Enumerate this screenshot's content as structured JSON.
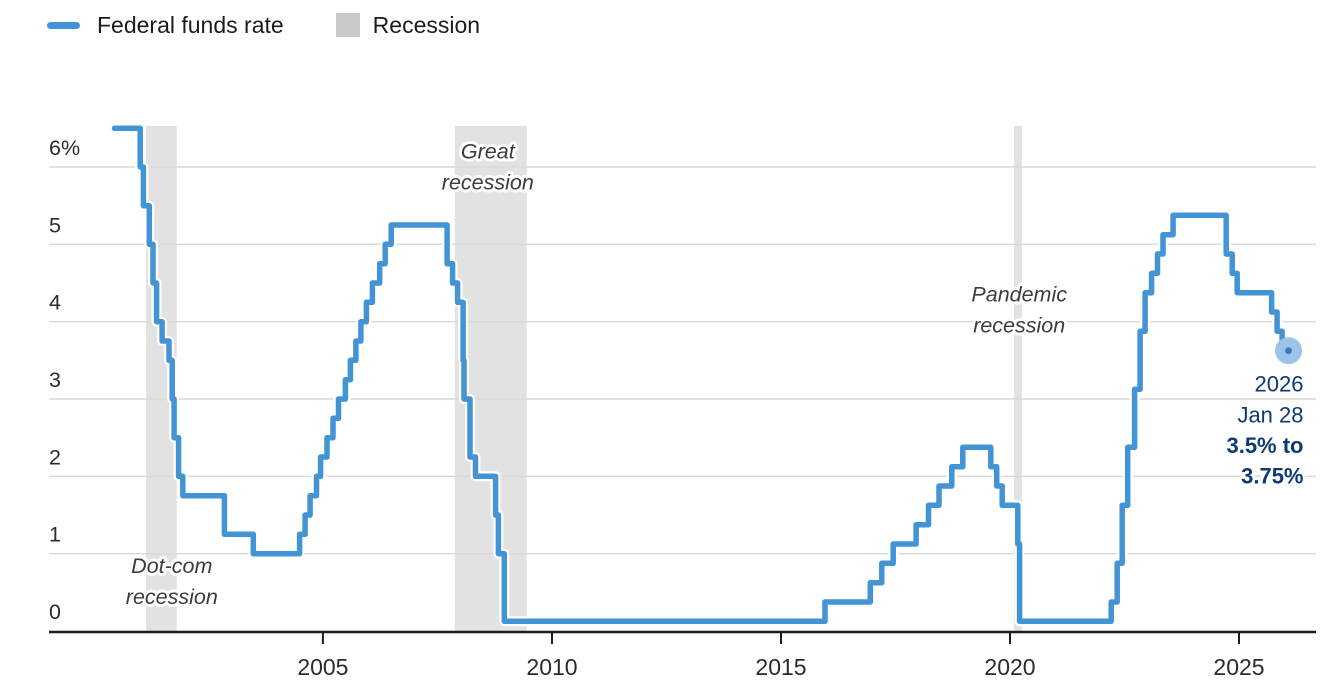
{
  "chart_data": {
    "type": "line",
    "step": true,
    "title": "",
    "xlabel": "",
    "ylabel": "",
    "xlim": [
      1999.02,
      2026.68
    ],
    "ylim": [
      0,
      6.53
    ],
    "grid": "horizontal-only",
    "x_ticks": [
      {
        "v": 2005,
        "label": "2005"
      },
      {
        "v": 2010,
        "label": "2010"
      },
      {
        "v": 2015,
        "label": "2015"
      },
      {
        "v": 2020,
        "label": "2020"
      },
      {
        "v": 2025,
        "label": "2025"
      }
    ],
    "y_ticks": [
      {
        "v": 0,
        "label": "0"
      },
      {
        "v": 1,
        "label": "1"
      },
      {
        "v": 2,
        "label": "2"
      },
      {
        "v": 3,
        "label": "3"
      },
      {
        "v": 4,
        "label": "4"
      },
      {
        "v": 5,
        "label": "5"
      },
      {
        "v": 6,
        "label": "6%"
      }
    ],
    "legend": {
      "position": "top-left",
      "items": [
        {
          "label": "Federal funds rate",
          "swatch": "line",
          "color": "#4294d5"
        },
        {
          "label": "Recession",
          "swatch": "square",
          "color": "#c9c9c9"
        }
      ]
    },
    "series": [
      {
        "name": "Federal funds rate",
        "color": "#4294d5",
        "points": [
          [
            2000.45,
            6.5
          ],
          [
            2001.01,
            6.0
          ],
          [
            2001.08,
            5.5
          ],
          [
            2001.21,
            5.0
          ],
          [
            2001.29,
            4.5
          ],
          [
            2001.37,
            4.0
          ],
          [
            2001.49,
            3.75
          ],
          [
            2001.64,
            3.5
          ],
          [
            2001.71,
            3.0
          ],
          [
            2001.75,
            2.5
          ],
          [
            2001.85,
            2.0
          ],
          [
            2001.94,
            1.75
          ],
          [
            2002.85,
            1.25
          ],
          [
            2003.48,
            1.0
          ],
          [
            2004.49,
            1.25
          ],
          [
            2004.61,
            1.5
          ],
          [
            2004.72,
            1.75
          ],
          [
            2004.86,
            2.0
          ],
          [
            2004.95,
            2.25
          ],
          [
            2005.09,
            2.5
          ],
          [
            2005.22,
            2.75
          ],
          [
            2005.34,
            3.0
          ],
          [
            2005.49,
            3.25
          ],
          [
            2005.6,
            3.5
          ],
          [
            2005.72,
            3.75
          ],
          [
            2005.83,
            4.0
          ],
          [
            2005.95,
            4.25
          ],
          [
            2006.08,
            4.5
          ],
          [
            2006.24,
            4.75
          ],
          [
            2006.36,
            5.0
          ],
          [
            2006.49,
            5.25
          ],
          [
            2007.71,
            4.75
          ],
          [
            2007.83,
            4.5
          ],
          [
            2007.94,
            4.25
          ],
          [
            2008.06,
            3.5
          ],
          [
            2008.08,
            3.0
          ],
          [
            2008.21,
            2.25
          ],
          [
            2008.33,
            2.0
          ],
          [
            2008.77,
            1.5
          ],
          [
            2008.83,
            1.0
          ],
          [
            2008.96,
            0.125
          ],
          [
            2015.96,
            0.375
          ],
          [
            2016.95,
            0.625
          ],
          [
            2017.2,
            0.875
          ],
          [
            2017.45,
            1.125
          ],
          [
            2017.95,
            1.375
          ],
          [
            2018.22,
            1.625
          ],
          [
            2018.45,
            1.875
          ],
          [
            2018.73,
            2.125
          ],
          [
            2018.97,
            2.375
          ],
          [
            2019.58,
            2.125
          ],
          [
            2019.71,
            1.875
          ],
          [
            2019.83,
            1.625
          ],
          [
            2020.17,
            1.125
          ],
          [
            2020.21,
            0.125
          ],
          [
            2022.21,
            0.375
          ],
          [
            2022.34,
            0.875
          ],
          [
            2022.45,
            1.625
          ],
          [
            2022.57,
            2.375
          ],
          [
            2022.72,
            3.125
          ],
          [
            2022.84,
            3.875
          ],
          [
            2022.95,
            4.375
          ],
          [
            2023.09,
            4.625
          ],
          [
            2023.22,
            4.875
          ],
          [
            2023.34,
            5.125
          ],
          [
            2023.56,
            5.375
          ],
          [
            2024.72,
            4.875
          ],
          [
            2024.85,
            4.625
          ],
          [
            2024.96,
            4.375
          ],
          [
            2025.71,
            4.125
          ],
          [
            2025.83,
            3.875
          ],
          [
            2025.94,
            3.625
          ],
          [
            2026.08,
            3.625
          ]
        ]
      }
    ],
    "recessions": [
      {
        "name": "Dot-com recession",
        "start": 2001.14,
        "end": 2001.81
      },
      {
        "name": "Great recession",
        "start": 2007.88,
        "end": 2009.45
      },
      {
        "name": "Pandemic recession",
        "start": 2020.09,
        "end": 2020.26
      }
    ],
    "annotations": [
      {
        "lines": [
          "Dot-com",
          "recession"
        ],
        "x": 2001.7,
        "y": 0.84
      },
      {
        "lines": [
          "Great",
          "recession"
        ],
        "x": 2008.6,
        "y": 6.2
      },
      {
        "lines": [
          "Pandemic",
          "recession"
        ],
        "x": 2020.2,
        "y": 4.35
      }
    ],
    "end_point": {
      "x": 2026.08,
      "y": 3.625,
      "dot_color": "#9bc4eb"
    },
    "end_label": {
      "lines": [
        {
          "text": "2026",
          "bold": false
        },
        {
          "text": "Jan 28",
          "bold": false
        },
        {
          "text": "3.5% to",
          "bold": true
        },
        {
          "text": "3.75%",
          "bold": true
        }
      ],
      "color": "#0e3a72"
    },
    "colors": {
      "band": "#e2e2e2",
      "grid": "#d9d9d9",
      "axis": "#1d1d1d",
      "tick_text": "#2b2b2b",
      "annotation_text": "#3c3c3c"
    }
  }
}
